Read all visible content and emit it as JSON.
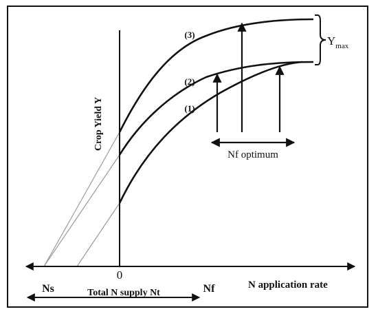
{
  "diagram": {
    "y_axis_label": "Crop Yield Y",
    "x_axis_label": "N application rate",
    "origin_label": "0",
    "ns_label": "Ns",
    "nf_label": "Nf",
    "total_supply_label": "Total N supply Nt",
    "nf_optimum_label": "Nf optimum",
    "ymax_label": "Y",
    "ymax_subscript": "max",
    "curve_labels": [
      "(1)",
      "(2)",
      "(3)"
    ]
  }
}
